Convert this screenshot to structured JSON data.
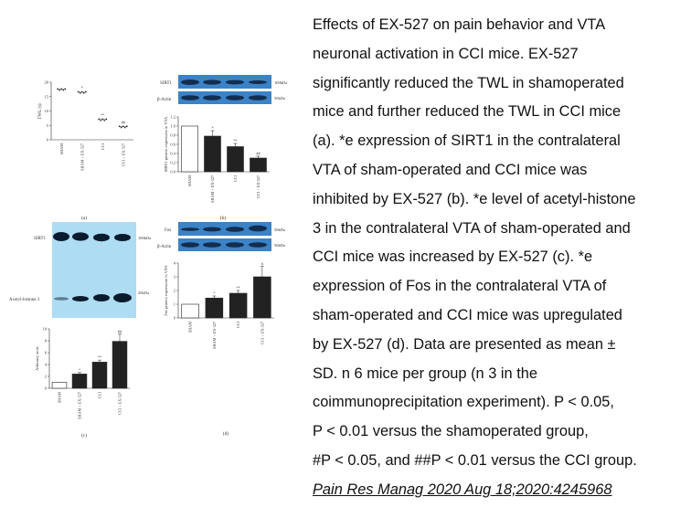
{
  "caption": {
    "lines": [
      "Effects of EX-527 on pain behavior and VTA",
      "neuronal activation in CCI mice. EX-527",
      "significantly reduced the TWL in shamoperated",
      "mice and further reduced the TWL in CCI mice",
      "(a). *e expression of SIRT1 in the contralateral",
      "VTA of sham-operated and CCI mice was",
      "inhibited by EX-527 (b). *e level of acetyl-histone",
      "3 in the contralateral VTA of sham-operated and",
      "CCI mice was increased by EX-527 (c). *e",
      "expression of Fos in the contralateral VTA of",
      "sham-operated and CCI mice was upregulated",
      "by EX-527 (d). Data are presented as mean ±",
      "SD. n   6 mice per group (n   3 in the",
      "coimmunoprecipitation experiment).  P < 0.05,",
      "P < 0.01 versus the shamoperated group,",
      "#P < 0.05, and ##P < 0.01 versus the CCI group."
    ],
    "citation": "Pain Res Manag 2020 Aug 18;2020:4245968"
  },
  "figure": {
    "panel_a": {
      "label": "(a)",
      "ylabel": "TWL (s)",
      "chart_data": {
        "type": "scatter",
        "ylabel": "TWL (s)",
        "ylim": [
          0,
          20
        ],
        "yticks": [
          "0",
          "5",
          "10",
          "15",
          "20"
        ],
        "categories": [
          "SHAM",
          "SHAM + EX-527",
          "CCI",
          "CCI + EX-527"
        ],
        "values": [
          17.5,
          16.5,
          7,
          4.5
        ],
        "annotations": [
          "",
          "*",
          "**",
          "##"
        ]
      }
    },
    "panel_b": {
      "label": "(b)",
      "blot_rows": [
        "SIRT1",
        "β-Actin"
      ],
      "blot_sizes": [
        "100kDa",
        "50kDa"
      ],
      "chart_data": {
        "type": "bar",
        "ylabel": "SIRT1 protein expression in VTA",
        "ylim": [
          0,
          1.2
        ],
        "yticks": [
          "0.0",
          "0.2",
          "0.4",
          "0.6",
          "0.8",
          "1.0",
          "1.2"
        ],
        "categories": [
          "SHAM",
          "SHAM + EX-527",
          "CCI",
          "CCI + EX-527"
        ],
        "values": [
          1.0,
          0.78,
          0.55,
          0.3
        ],
        "errors": [
          0,
          0.12,
          0.07,
          0.04
        ],
        "annotations": [
          "",
          "*",
          "**",
          "##"
        ]
      }
    },
    "panel_c": {
      "label": "(c)",
      "blot_rows": [
        "SIRT1",
        "Acetyl-histone 3"
      ],
      "blot_sizes": [
        "100kDa",
        "20kDa"
      ],
      "chart_data": {
        "type": "bar",
        "ylabel": "Arbitrary units",
        "ylim": [
          0,
          10
        ],
        "yticks": [
          "0",
          "2",
          "4",
          "6",
          "8",
          "10"
        ],
        "categories": [
          "SHAM",
          "SHAM + EX-527",
          "CCI",
          "CCI + EX-527"
        ],
        "values": [
          1,
          2.4,
          4.4,
          7.9
        ],
        "errors": [
          0,
          0.25,
          0.35,
          1.2
        ],
        "annotations": [
          "",
          "*",
          "**",
          "##"
        ]
      }
    },
    "panel_d": {
      "label": "(d)",
      "blot_rows": [
        "Fos",
        "β-Actin"
      ],
      "blot_sizes": [
        "50kDa",
        "50kDa"
      ],
      "chart_data": {
        "type": "bar",
        "ylabel": "Fos protein expression in VTA",
        "ylim": [
          0,
          4
        ],
        "yticks": [
          "0",
          "1",
          "2",
          "3",
          "4"
        ],
        "categories": [
          "SHAM",
          "SHAM + EX-527",
          "CCI",
          "CCI + EX-527"
        ],
        "values": [
          1,
          1.45,
          1.8,
          3.0
        ],
        "errors": [
          0,
          0.15,
          0.2,
          0.75
        ],
        "annotations": [
          "",
          "*",
          "**",
          "#"
        ]
      }
    }
  }
}
